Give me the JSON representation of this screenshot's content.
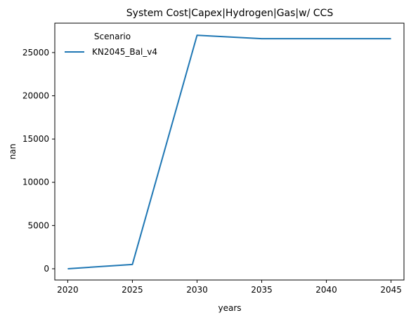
{
  "chart_data": {
    "type": "line",
    "title": "System Cost|Capex|Hydrogen|Gas|w/ CCS",
    "xlabel": "years",
    "ylabel": "nan",
    "x": [
      2020,
      2025,
      2030,
      2035,
      2040,
      2045
    ],
    "xlim": [
      2019,
      2046
    ],
    "ylim": [
      -1300,
      28400
    ],
    "xticks": [
      2020,
      2025,
      2030,
      2035,
      2040,
      2045
    ],
    "yticks": [
      0,
      5000,
      10000,
      15000,
      20000,
      25000
    ],
    "grid": false,
    "legend": {
      "title": "Scenario",
      "position": "top-left"
    },
    "series": [
      {
        "name": "KN2045_Bal_v4",
        "color": "#1f77b4",
        "values": [
          0,
          500,
          27000,
          26600,
          26600,
          26600
        ]
      }
    ]
  }
}
